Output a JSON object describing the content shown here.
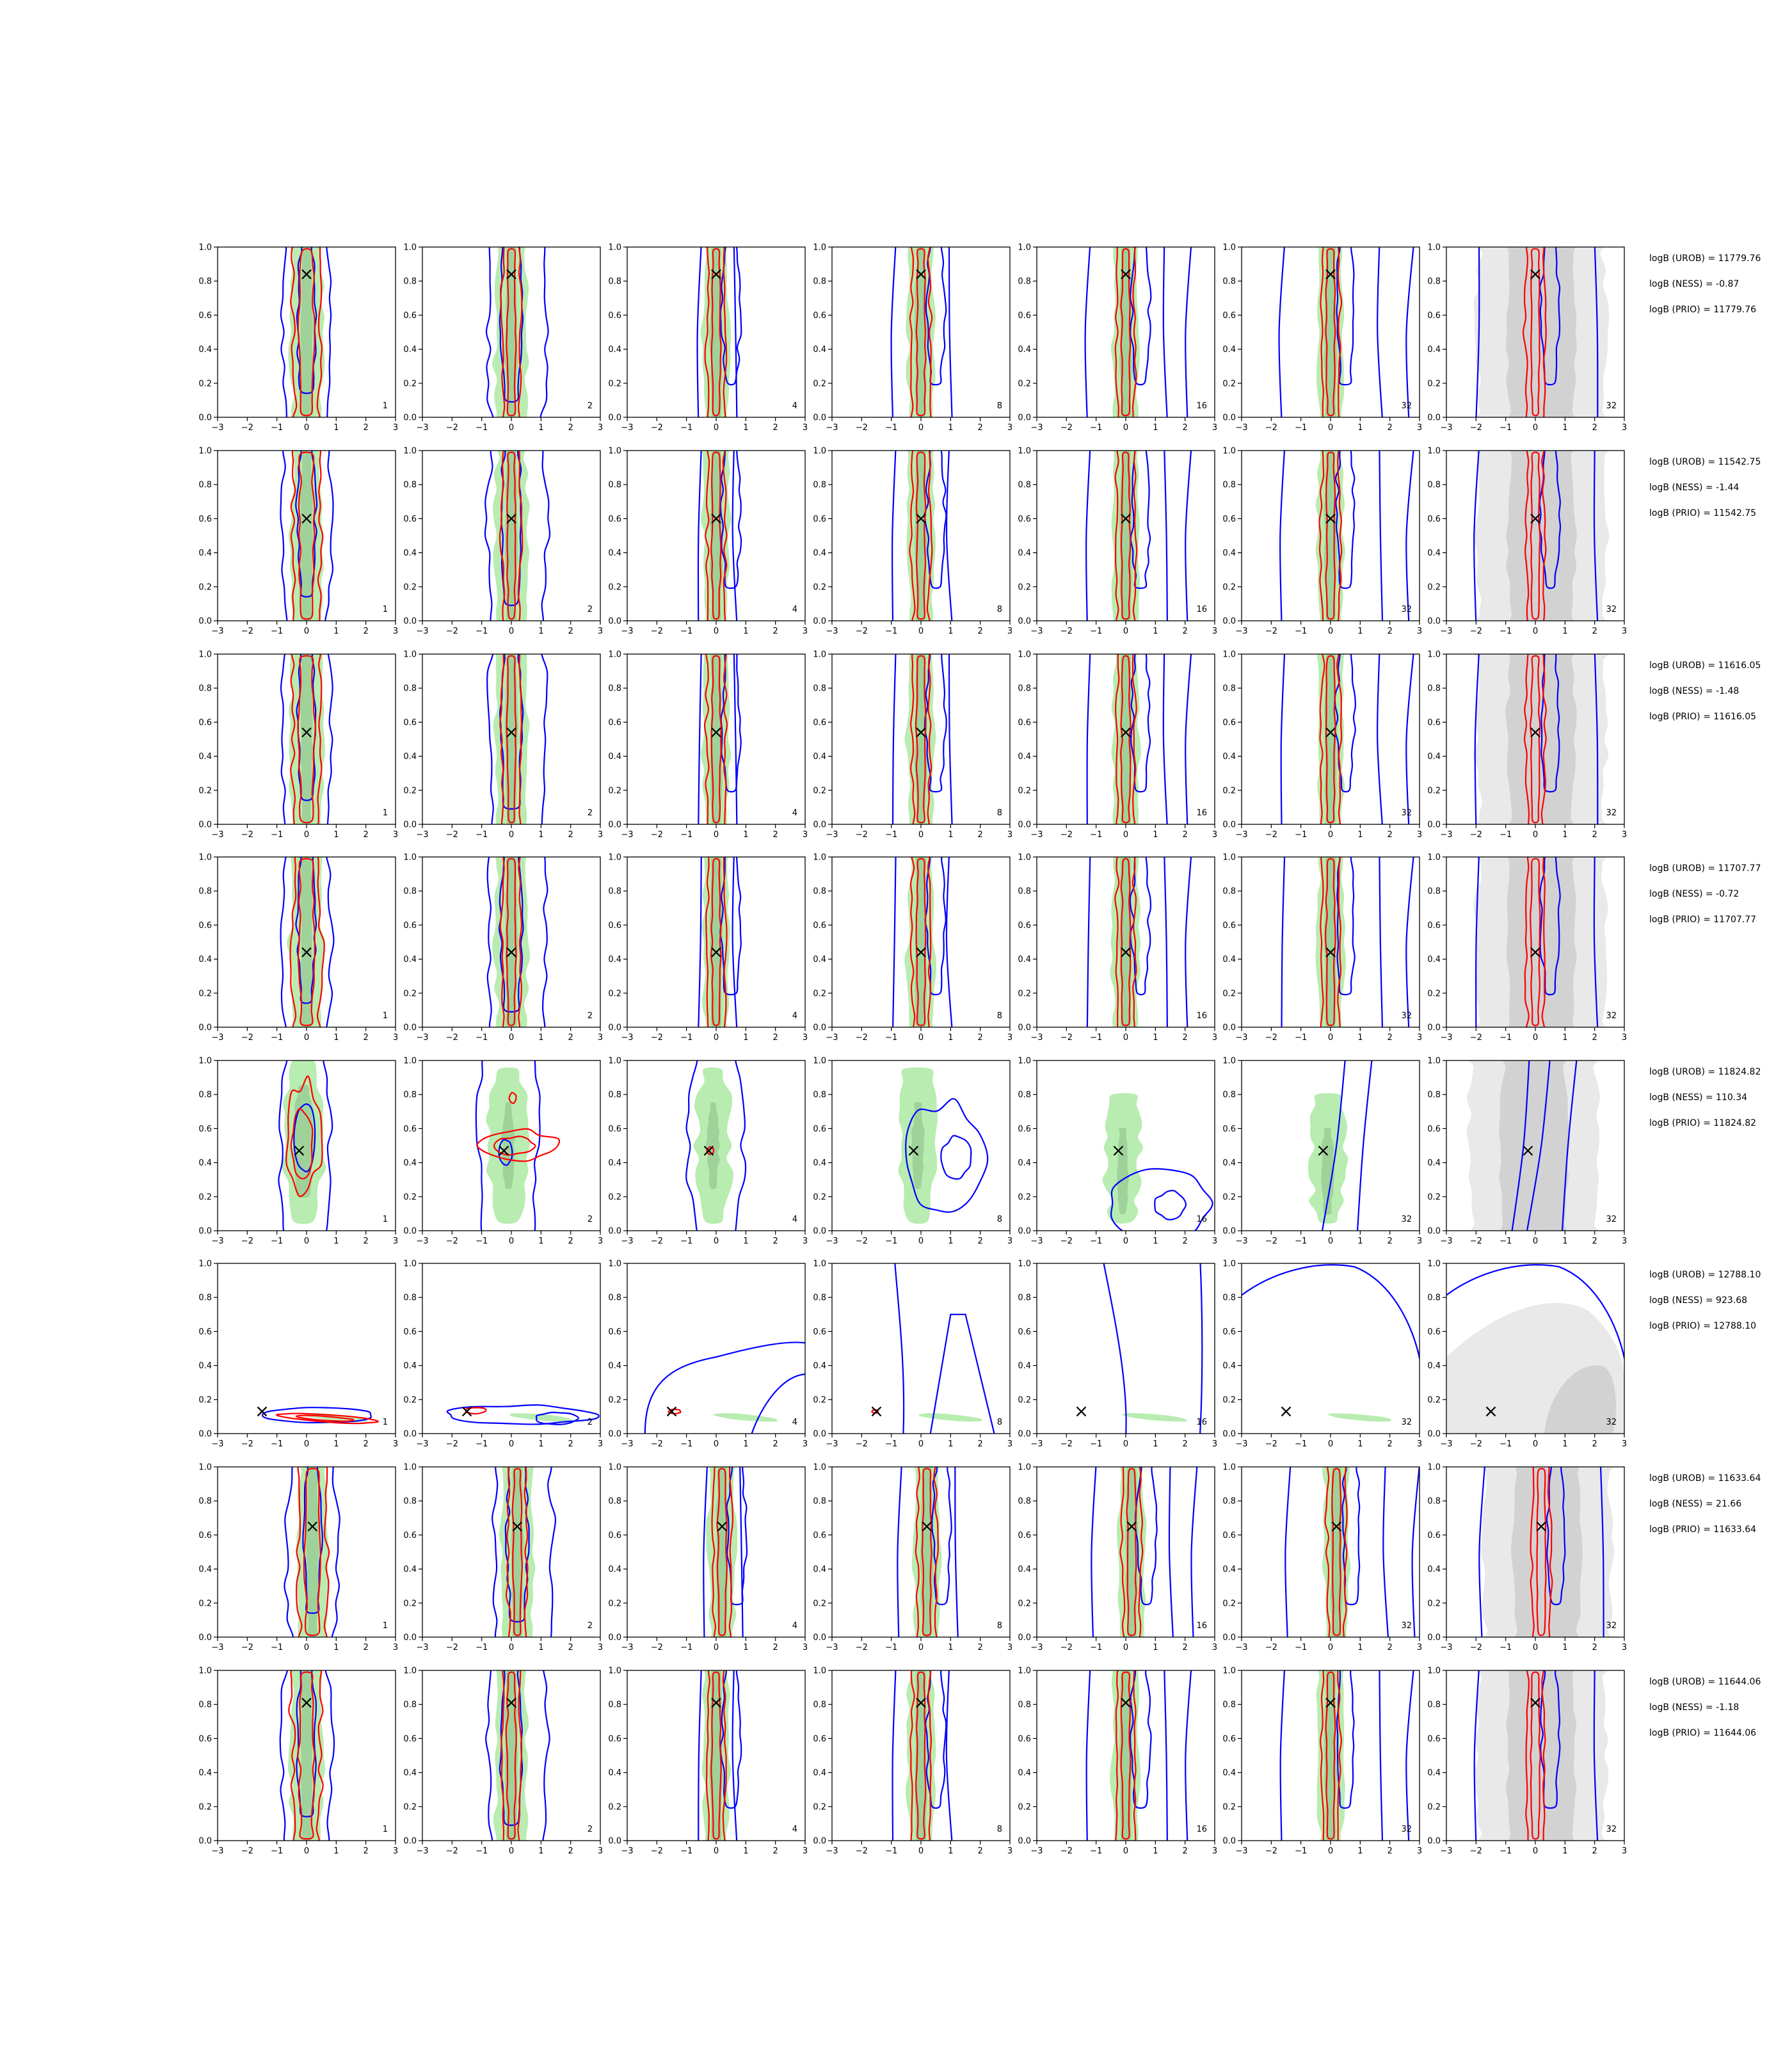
{
  "chart_data": {
    "type": "contour-grid",
    "title": "",
    "xlabel": "",
    "ylabel": "",
    "xlim": [
      -3,
      3
    ],
    "ylim": [
      0,
      1
    ],
    "x_ticks": [
      "−3",
      "−2",
      "−1",
      "0",
      "1",
      "2",
      "3"
    ],
    "y_ticks": [
      "0.0",
      "0.2",
      "0.4",
      "0.6",
      "0.8",
      "1.0"
    ],
    "columns": [
      "1",
      "2",
      "4",
      "8",
      "16",
      "32",
      "32"
    ],
    "colors": {
      "posterior_fill": "#b8ecb0",
      "posterior_fill_dark": "#9fd29a",
      "prior_fill_light": "#e9e9e9",
      "prior_fill_dark": "#d2d2d2",
      "approx_contour": "#0000ff",
      "sample_contour": "#ff0000",
      "truth_marker": "#000000"
    },
    "rows": [
      {
        "truth": [
          0.0,
          0.84
        ],
        "log_b": [
          "logB (UROB) = 11779.76",
          "logB (NESS) = -0.87",
          "logB (PRIO) = 11779.76"
        ],
        "kind": "narrow"
      },
      {
        "truth": [
          0.0,
          0.6
        ],
        "log_b": [
          "logB (UROB) = 11542.75",
          "logB (NESS) = -1.44",
          "logB (PRIO) = 11542.75"
        ],
        "kind": "narrow"
      },
      {
        "truth": [
          0.0,
          0.54
        ],
        "log_b": [
          "logB (UROB) = 11616.05",
          "logB (NESS) = -1.48",
          "logB (PRIO) = 11616.05"
        ],
        "kind": "narrow"
      },
      {
        "truth": [
          0.0,
          0.44
        ],
        "log_b": [
          "logB (UROB) = 11707.77",
          "logB (NESS) = -0.72",
          "logB (PRIO) = 11707.77"
        ],
        "kind": "narrow"
      },
      {
        "truth": [
          -0.25,
          0.47
        ],
        "log_b": [
          "logB (UROB) = 11824.82",
          "logB (NESS) = 110.34",
          "logB (PRIO) = 11824.82"
        ],
        "kind": "shifted"
      },
      {
        "truth": [
          -1.5,
          0.13
        ],
        "log_b": [
          "logB (UROB) = 12788.10",
          "logB (NESS) = 923.68",
          "logB (PRIO) = 12788.10"
        ],
        "kind": "flat"
      },
      {
        "truth": [
          0.2,
          0.65
        ],
        "log_b": [
          "logB (UROB) = 11633.64",
          "logB (NESS) = 21.66",
          "logB (PRIO) = 11633.64"
        ],
        "kind": "narrow"
      },
      {
        "truth": [
          0.0,
          0.81
        ],
        "log_b": [
          "logB (UROB) = 11644.06",
          "logB (NESS) = -1.18",
          "logB (PRIO) = 11644.06"
        ],
        "kind": "narrow"
      }
    ]
  }
}
